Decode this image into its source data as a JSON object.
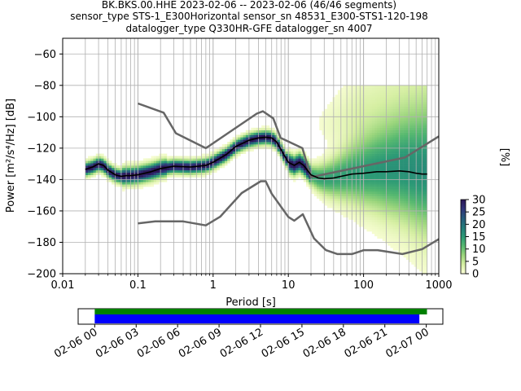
{
  "title_lines": [
    "BK.BKS.00.HHE   2023-02-06 -- 2023-02-06  (46/46 segments)",
    "sensor_type STS-1_E300Horizontal sensor_sn 48531_E300-STS1-120-198",
    "datalogger_type Q330HR-GFE datalogger_sn 4007"
  ],
  "chart_data": {
    "type": "heatmap",
    "xlabel": "Period [s]",
    "ylabel": "Power [m²/s⁴/Hz] [dB]",
    "xscale": "log",
    "xlim": [
      0.01,
      1000
    ],
    "ylim": [
      -200,
      -50
    ],
    "x_tick_labels": [
      "0.01",
      "0.1",
      "1",
      "10",
      "100",
      "1000"
    ],
    "y_tick_labels": [
      "−200",
      "−180",
      "−160",
      "−140",
      "−120",
      "−100",
      "−80",
      "−60"
    ],
    "y_ticks": [
      -200,
      -180,
      -160,
      -140,
      -120,
      -100,
      -80,
      -60
    ],
    "grid": true,
    "colorbar": {
      "label": "[%]",
      "ticks": [
        0,
        5,
        10,
        15,
        20,
        25,
        30
      ],
      "tick_labels": [
        "0",
        "5",
        "10",
        "15",
        "20",
        "25",
        "30"
      ],
      "range": [
        0,
        30
      ],
      "colormap": [
        "#fcffd9",
        "#d6efa3",
        "#9ad57c",
        "#56b870",
        "#2c9a76",
        "#247b7a",
        "#275b7c",
        "#31357a",
        "#2b1557"
      ]
    },
    "mean_curve": {
      "color": "#000000",
      "period": [
        0.02,
        0.025,
        0.03,
        0.035,
        0.04,
        0.05,
        0.06,
        0.07,
        0.08,
        0.1,
        0.15,
        0.2,
        0.3,
        0.5,
        0.8,
        1.0,
        1.5,
        2.0,
        3.0,
        4.0,
        5.0,
        6.0,
        7.0,
        8.0,
        10,
        12,
        14,
        16,
        20,
        25,
        30,
        40,
        50,
        70,
        100,
        150,
        200,
        300,
        400,
        500,
        600,
        700
      ],
      "db": [
        -133.5,
        -132,
        -130,
        -131,
        -134,
        -137,
        -138,
        -137.5,
        -137.5,
        -137,
        -135,
        -133,
        -131.5,
        -132,
        -131,
        -129,
        -124,
        -119,
        -115,
        -113.5,
        -113,
        -113.5,
        -116,
        -121,
        -129,
        -131,
        -129,
        -131,
        -137,
        -139,
        -139.5,
        -139,
        -138,
        -136.5,
        -136,
        -135,
        -135,
        -134.5,
        -135,
        -136,
        -136.5,
        -136.5
      ]
    },
    "noise_models": [
      {
        "name": "NHNM",
        "color": "#666666",
        "period": [
          0.1,
          0.22,
          0.32,
          0.8,
          3.8,
          4.6,
          6.3,
          7.9,
          15.4,
          20,
          354.8,
          1000
        ],
        "db": [
          -91.5,
          -97.4,
          -110.5,
          -120,
          -98,
          -96.5,
          -101,
          -113.5,
          -120,
          -138.5,
          -126,
          -112.5
        ]
      },
      {
        "name": "NLNM",
        "color": "#666666",
        "period": [
          0.1,
          0.17,
          0.4,
          0.8,
          1.24,
          2.4,
          4.3,
          5.0,
          6.0,
          10,
          12,
          15.6,
          21.9,
          31.6,
          45,
          70,
          101,
          154,
          328,
          600,
          1000
        ],
        "db": [
          -168,
          -166.7,
          -166.7,
          -169.2,
          -163.7,
          -148.6,
          -141.1,
          -141.1,
          -149,
          -163.8,
          -166.2,
          -162.1,
          -177.5,
          -185,
          -187.5,
          -187.5,
          -185,
          -185,
          -187.5,
          -184.4,
          -178
        ]
      }
    ],
    "timeline": {
      "tick_labels": [
        "02-06 00",
        "02-06 03",
        "02-06 06",
        "02-06 09",
        "02-06 12",
        "02-06 15",
        "02-06 18",
        "02-06 21",
        "02-07 00"
      ],
      "tick_hours": [
        0,
        3,
        6,
        9,
        12,
        15,
        18,
        21,
        24
      ],
      "hour_min": -1.2,
      "hour_max": 25.2,
      "data_available": {
        "color": "#008000",
        "start_hour": 0,
        "end_hour": 24.05
      },
      "psd_segments": {
        "color": "#0000ff",
        "start_hour": 0,
        "end_hour": 23.5
      }
    }
  }
}
